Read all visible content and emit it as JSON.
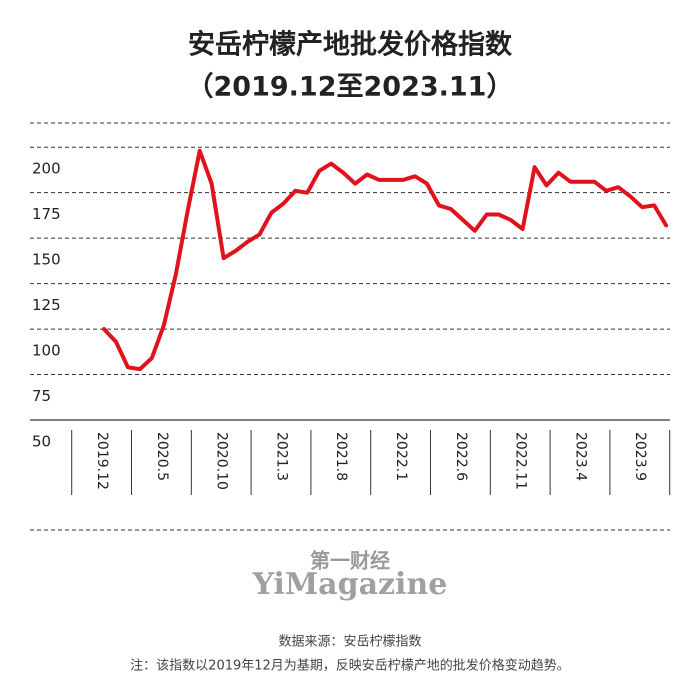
{
  "chart_data": {
    "type": "line",
    "title": "安岳柠檬产地批发价格指数",
    "subtitle": "（2019.12至2023.11）",
    "categories": [
      "2019.12",
      null,
      null,
      null,
      null,
      "2020.5",
      null,
      null,
      null,
      null,
      "2020.10",
      null,
      null,
      null,
      null,
      "2021.3",
      null,
      null,
      null,
      null,
      "2021.8",
      null,
      null,
      null,
      null,
      "2022.1",
      null,
      null,
      null,
      null,
      "2022.6",
      null,
      null,
      null,
      null,
      "2022.11",
      null,
      null,
      null,
      null,
      "2023.4",
      null,
      null,
      null,
      null,
      "2023.9",
      null,
      null
    ],
    "values": [
      100,
      93,
      79,
      78,
      84,
      102,
      130,
      165,
      198,
      180,
      139,
      143,
      148,
      152,
      164,
      169,
      176,
      175,
      187,
      191,
      186,
      180,
      185,
      182,
      182,
      182,
      184,
      180,
      168,
      166,
      160,
      154,
      163,
      163,
      160,
      155,
      189,
      179,
      186,
      181,
      181,
      181,
      176,
      178,
      173,
      167,
      168,
      157
    ],
    "color": "#e0121b",
    "ylim": [
      50,
      210
    ],
    "yticks": [
      50,
      75,
      100,
      125,
      150,
      175,
      200
    ],
    "grid": true,
    "watermark_cn": "第一财经",
    "watermark_en": "YiMagazine",
    "source": "数据来源：安岳柠檬指数",
    "note": "注：该指数以2019年12月为基期，反映安岳柠檬产地的批发价格变动趋势。"
  }
}
